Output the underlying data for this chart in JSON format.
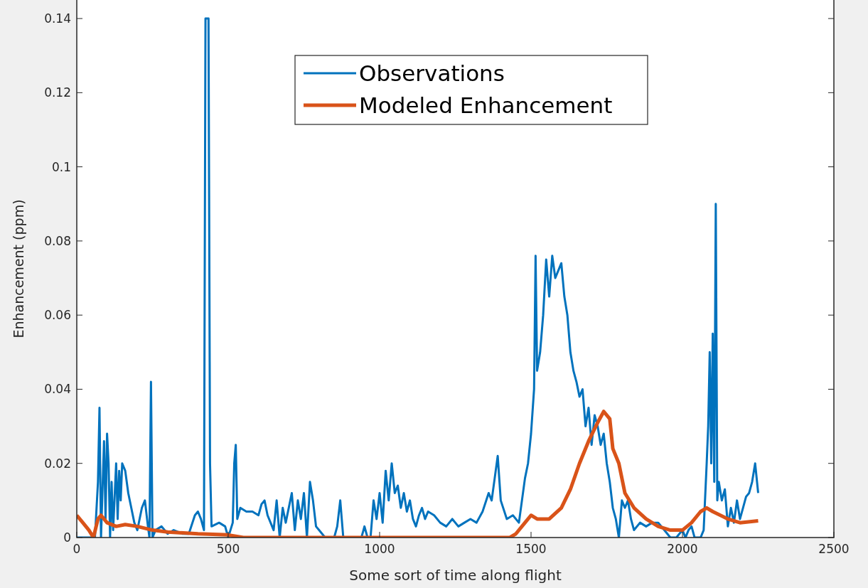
{
  "chart_data": {
    "type": "line",
    "xlabel": "Some sort of time along flight",
    "ylabel": "Enhancement (ppm)",
    "xlim": [
      0,
      2500
    ],
    "xticks": [
      0,
      500,
      1000,
      1500,
      2000,
      2500
    ],
    "ylim": [
      0,
      0.145
    ],
    "yticks": [
      0,
      0.02,
      0.04,
      0.06,
      0.08,
      0.1,
      0.12,
      0.14
    ],
    "grid": false,
    "legend": "top",
    "line_style": "solid",
    "marker": "none",
    "series": [
      {
        "name": "Observations",
        "color": "#0072bd",
        "x": [
          0,
          60,
          70,
          75,
          80,
          90,
          95,
          100,
          105,
          110,
          115,
          120,
          130,
          135,
          140,
          145,
          150,
          160,
          170,
          180,
          190,
          200,
          215,
          225,
          235,
          240,
          245,
          250,
          260,
          280,
          300,
          320,
          350,
          370,
          390,
          400,
          410,
          420,
          425,
          430,
          435,
          440,
          445,
          470,
          490,
          500,
          515,
          520,
          525,
          530,
          540,
          560,
          580,
          600,
          610,
          620,
          630,
          650,
          660,
          670,
          680,
          690,
          710,
          720,
          730,
          740,
          750,
          760,
          770,
          780,
          790,
          800,
          820,
          850,
          860,
          870,
          880,
          890,
          900,
          940,
          950,
          960,
          970,
          980,
          990,
          1000,
          1010,
          1020,
          1030,
          1040,
          1050,
          1060,
          1070,
          1080,
          1090,
          1100,
          1110,
          1120,
          1130,
          1140,
          1150,
          1160,
          1180,
          1200,
          1220,
          1240,
          1260,
          1280,
          1300,
          1320,
          1340,
          1360,
          1370,
          1380,
          1390,
          1400,
          1420,
          1440,
          1460,
          1470,
          1480,
          1490,
          1500,
          1510,
          1515,
          1520,
          1530,
          1540,
          1550,
          1560,
          1570,
          1580,
          1590,
          1600,
          1610,
          1620,
          1630,
          1640,
          1650,
          1660,
          1670,
          1680,
          1690,
          1700,
          1710,
          1720,
          1730,
          1740,
          1750,
          1760,
          1770,
          1780,
          1790,
          1800,
          1810,
          1820,
          1830,
          1840,
          1860,
          1880,
          1900,
          1920,
          1940,
          1960,
          1980,
          2000,
          2010,
          2020,
          2030,
          2040,
          2060,
          2070,
          2080,
          2085,
          2090,
          2095,
          2100,
          2105,
          2110,
          2115,
          2120,
          2130,
          2140,
          2150,
          2160,
          2170,
          2180,
          2190,
          2200,
          2210,
          2220,
          2230,
          2240,
          2250
        ],
        "values": [
          0,
          0,
          0.015,
          0.035,
          0,
          0.026,
          0.005,
          0.028,
          0.02,
          0,
          0.015,
          0.002,
          0.02,
          0.005,
          0.018,
          0.01,
          0.02,
          0.018,
          0.012,
          0.008,
          0.004,
          0.002,
          0.008,
          0.01,
          0.003,
          0,
          0.042,
          0,
          0.002,
          0.003,
          0.001,
          0.002,
          0.001,
          0.001,
          0.006,
          0.007,
          0.005,
          0.002,
          0.14,
          0.14,
          0.14,
          0.02,
          0.003,
          0.004,
          0.003,
          0,
          0.004,
          0.02,
          0.025,
          0.005,
          0.008,
          0.007,
          0.007,
          0.006,
          0.009,
          0.01,
          0.006,
          0.002,
          0.01,
          0,
          0.008,
          0.004,
          0.012,
          0.002,
          0.01,
          0.005,
          0.012,
          0,
          0.015,
          0.01,
          0.003,
          0.002,
          0,
          0,
          0.003,
          0.01,
          0,
          0,
          0,
          0,
          0.003,
          0,
          0,
          0.01,
          0.005,
          0.012,
          0.004,
          0.018,
          0.01,
          0.02,
          0.012,
          0.014,
          0.008,
          0.012,
          0.007,
          0.01,
          0.005,
          0.003,
          0.006,
          0.008,
          0.005,
          0.007,
          0.006,
          0.004,
          0.003,
          0.005,
          0.003,
          0.004,
          0.005,
          0.004,
          0.007,
          0.012,
          0.01,
          0.016,
          0.022,
          0.01,
          0.005,
          0.006,
          0.004,
          0.01,
          0.016,
          0.02,
          0.028,
          0.04,
          0.076,
          0.045,
          0.05,
          0.06,
          0.075,
          0.065,
          0.076,
          0.07,
          0.072,
          0.074,
          0.065,
          0.06,
          0.05,
          0.045,
          0.042,
          0.038,
          0.04,
          0.03,
          0.035,
          0.025,
          0.033,
          0.03,
          0.025,
          0.028,
          0.02,
          0.015,
          0.008,
          0.005,
          0,
          0.01,
          0.008,
          0.01,
          0.005,
          0.002,
          0.004,
          0.003,
          0.004,
          0.004,
          0.002,
          0,
          0,
          0.002,
          0,
          0.002,
          0.003,
          0,
          0,
          0.002,
          0.02,
          0.03,
          0.05,
          0.02,
          0.055,
          0.015,
          0.09,
          0.01,
          0.015,
          0.01,
          0.013,
          0.003,
          0.008,
          0.004,
          0.01,
          0.005,
          0.008,
          0.011,
          0.012,
          0.015,
          0.02,
          0.012
        ]
      },
      {
        "name": "Modeled Enhancement",
        "color": "#d95319",
        "x": [
          0,
          20,
          40,
          55,
          70,
          80,
          100,
          130,
          160,
          200,
          250,
          300,
          400,
          500,
          550,
          900,
          1000,
          1430,
          1450,
          1480,
          1500,
          1520,
          1560,
          1600,
          1630,
          1660,
          1690,
          1720,
          1740,
          1760,
          1770,
          1790,
          1810,
          1840,
          1880,
          1920,
          1960,
          2000,
          2030,
          2060,
          2080,
          2100,
          2150,
          2190,
          2250
        ],
        "values": [
          0.006,
          0.004,
          0.002,
          0,
          0.005,
          0.006,
          0.004,
          0.003,
          0.0035,
          0.003,
          0.002,
          0.0015,
          0.001,
          0.0007,
          0,
          0,
          0,
          0,
          0.001,
          0.004,
          0.006,
          0.005,
          0.005,
          0.008,
          0.013,
          0.02,
          0.026,
          0.031,
          0.034,
          0.032,
          0.024,
          0.02,
          0.012,
          0.008,
          0.005,
          0.003,
          0.002,
          0.002,
          0.004,
          0.007,
          0.008,
          0.007,
          0.005,
          0.004,
          0.0045
        ]
      }
    ]
  }
}
